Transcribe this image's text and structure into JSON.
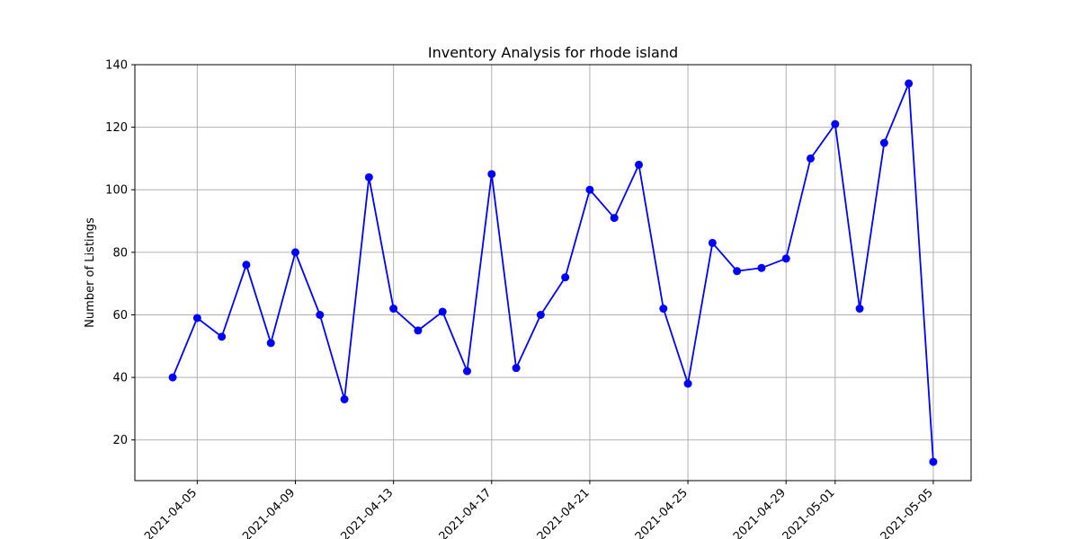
{
  "chart_data": {
    "type": "line",
    "title": "Inventory Analysis for rhode island",
    "xlabel": "",
    "ylabel": "Number of Listings",
    "xlim": [
      "2021-04-02T11:00",
      "2021-05-06T13:00"
    ],
    "ylim": [
      7,
      140
    ],
    "yticks": [
      20,
      40,
      60,
      80,
      100,
      120,
      140
    ],
    "xticks": [
      "2021-04-05",
      "2021-04-09",
      "2021-04-13",
      "2021-04-17",
      "2021-04-21",
      "2021-04-25",
      "2021-04-29",
      "2021-05-01",
      "2021-05-05"
    ],
    "grid": true,
    "series": [
      {
        "color": "#0000ff",
        "marker": "circle",
        "x": [
          "2021-04-04",
          "2021-04-05",
          "2021-04-06",
          "2021-04-07",
          "2021-04-08",
          "2021-04-09",
          "2021-04-10",
          "2021-04-11",
          "2021-04-12",
          "2021-04-13",
          "2021-04-14",
          "2021-04-15",
          "2021-04-16",
          "2021-04-17",
          "2021-04-18",
          "2021-04-19",
          "2021-04-20",
          "2021-04-21",
          "2021-04-22",
          "2021-04-23",
          "2021-04-24",
          "2021-04-25",
          "2021-04-26",
          "2021-04-27",
          "2021-04-28",
          "2021-04-29",
          "2021-04-30",
          "2021-05-01",
          "2021-05-02",
          "2021-05-03",
          "2021-05-04",
          "2021-05-05"
        ],
        "values": [
          40,
          59,
          53,
          76,
          51,
          80,
          60,
          33,
          104,
          62,
          55,
          61,
          42,
          105,
          43,
          60,
          72,
          100,
          91,
          108,
          62,
          38,
          83,
          74,
          75,
          78,
          110,
          121,
          62,
          115,
          134,
          13
        ]
      }
    ]
  }
}
